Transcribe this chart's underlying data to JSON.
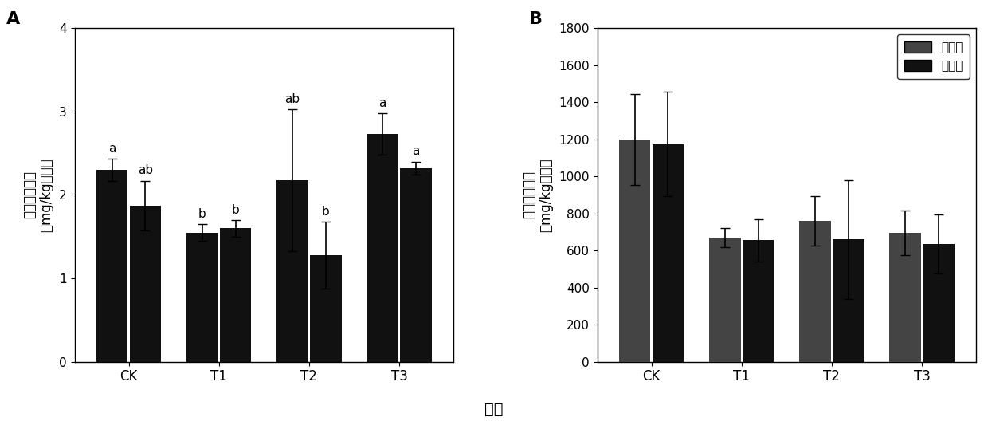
{
  "panel_A": {
    "title": "A",
    "categories": [
      "CK",
      "T1",
      "T2",
      "T3"
    ],
    "before_values": [
      2.3,
      1.55,
      2.18,
      2.73
    ],
    "after_values": [
      1.87,
      1.6,
      1.28,
      2.32
    ],
    "before_errors": [
      0.13,
      0.1,
      0.85,
      0.25
    ],
    "after_errors": [
      0.3,
      0.1,
      0.4,
      0.08
    ],
    "before_labels": [
      "a",
      "b",
      "ab",
      "a"
    ],
    "after_labels": [
      "ab",
      "b",
      "b",
      "a"
    ],
    "ylabel": "土壤总镉含量\n（mg/kg干重）",
    "ylim": [
      0,
      4
    ],
    "yticks": [
      0,
      1,
      2,
      3,
      4
    ]
  },
  "panel_B": {
    "title": "B",
    "categories": [
      "CK",
      "T1",
      "T2",
      "T3"
    ],
    "before_values": [
      1200,
      670,
      760,
      695
    ],
    "after_values": [
      1175,
      655,
      660,
      635
    ],
    "before_errors": [
      245,
      50,
      135,
      120
    ],
    "after_errors": [
      280,
      115,
      320,
      160
    ],
    "ylabel": "土壤总铅含量\n（mg/kg干重）",
    "ylim": [
      0,
      1800
    ],
    "yticks": [
      0,
      200,
      400,
      600,
      800,
      1000,
      1200,
      1400,
      1600,
      1800
    ],
    "legend_labels": [
      "处理前",
      "处理后"
    ]
  },
  "xlabel": "品种",
  "bar_color": "#111111",
  "bar_width": 0.35,
  "error_capsize": 4,
  "background_color": "#ffffff"
}
